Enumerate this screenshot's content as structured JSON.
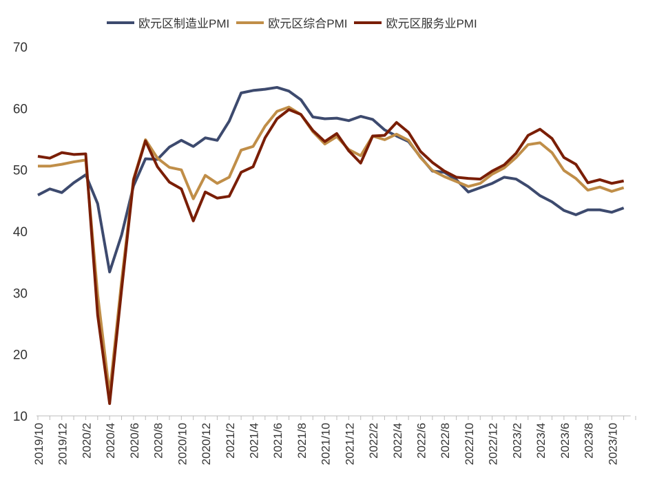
{
  "chart_data": {
    "type": "line",
    "title": "",
    "xlabel": "",
    "ylabel": "",
    "ylim": [
      10,
      70
    ],
    "yticks": [
      10,
      20,
      30,
      40,
      50,
      60,
      70
    ],
    "grid": false,
    "legend_position": "top",
    "categories": [
      "2019/10",
      "2019/11",
      "2019/12",
      "2020/1",
      "2020/2",
      "2020/3",
      "2020/4",
      "2020/5",
      "2020/6",
      "2020/7",
      "2020/8",
      "2020/9",
      "2020/10",
      "2020/11",
      "2020/12",
      "2021/1",
      "2021/2",
      "2021/3",
      "2021/4",
      "2021/5",
      "2021/6",
      "2021/7",
      "2021/8",
      "2021/9",
      "2021/10",
      "2021/11",
      "2021/12",
      "2022/1",
      "2022/2",
      "2022/3",
      "2022/4",
      "2022/5",
      "2022/6",
      "2022/7",
      "2022/8",
      "2022/9",
      "2022/10",
      "2022/11",
      "2022/12",
      "2023/1",
      "2023/2",
      "2023/3",
      "2023/4",
      "2023/5",
      "2023/6",
      "2023/7",
      "2023/8",
      "2023/9",
      "2023/10",
      "2023/11"
    ],
    "tick_labels": [
      "2019/10",
      "2019/12",
      "2020/2",
      "2020/4",
      "2020/6",
      "2020/8",
      "2020/10",
      "2020/12",
      "2021/2",
      "2021/4",
      "2021/6",
      "2021/8",
      "2021/10",
      "2021/12",
      "2022/2",
      "2022/4",
      "2022/6",
      "2022/8",
      "2022/10",
      "2022/12",
      "2023/2",
      "2023/4",
      "2023/6",
      "2023/8",
      "2023/10"
    ],
    "series": [
      {
        "name": "欧元区制造业PMI",
        "color": "#3d4a6e",
        "values": [
          45.9,
          46.9,
          46.3,
          47.9,
          49.2,
          44.5,
          33.4,
          39.4,
          47.4,
          51.8,
          51.7,
          53.7,
          54.8,
          53.8,
          55.2,
          54.8,
          57.9,
          62.5,
          62.9,
          63.1,
          63.4,
          62.8,
          61.4,
          58.6,
          58.3,
          58.4,
          58.0,
          58.7,
          58.2,
          56.5,
          55.5,
          54.6,
          52.1,
          49.8,
          49.6,
          48.4,
          46.4,
          47.1,
          47.8,
          48.8,
          48.5,
          47.3,
          45.8,
          44.8,
          43.4,
          42.7,
          43.5,
          43.5,
          43.1,
          43.8
        ]
      },
      {
        "name": "欧元区综合PMI",
        "color": "#c08e48",
        "values": [
          50.6,
          50.6,
          50.9,
          51.3,
          51.6,
          29.7,
          13.6,
          31.9,
          48.5,
          54.9,
          51.9,
          50.4,
          50.0,
          45.3,
          49.1,
          47.8,
          48.8,
          53.2,
          53.8,
          57.1,
          59.5,
          60.2,
          59.0,
          56.2,
          54.2,
          55.4,
          53.3,
          52.3,
          55.5,
          54.9,
          55.8,
          54.8,
          52.0,
          49.9,
          48.9,
          48.1,
          47.3,
          47.8,
          49.3,
          50.3,
          52.0,
          54.1,
          54.4,
          52.8,
          49.9,
          48.6,
          46.7,
          47.2,
          46.5,
          47.1
        ]
      },
      {
        "name": "欧元区服务业PMI",
        "color": "#7a1e05",
        "values": [
          52.2,
          51.9,
          52.8,
          52.5,
          52.6,
          26.4,
          12.0,
          30.5,
          48.3,
          54.7,
          50.5,
          48.0,
          46.9,
          41.7,
          46.4,
          45.4,
          45.7,
          49.6,
          50.5,
          55.2,
          58.3,
          59.8,
          59.0,
          56.4,
          54.6,
          55.9,
          53.1,
          51.1,
          55.5,
          55.6,
          57.7,
          56.1,
          53.0,
          51.2,
          49.8,
          48.8,
          48.6,
          48.5,
          49.8,
          50.8,
          52.7,
          55.6,
          56.6,
          55.1,
          52.0,
          50.9,
          47.9,
          48.4,
          47.8,
          48.2
        ]
      }
    ]
  }
}
